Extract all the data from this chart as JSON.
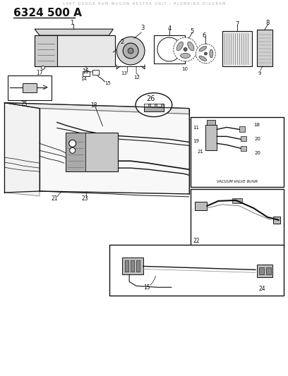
{
  "background_color": "#ffffff",
  "title_text": "6324 500 A",
  "title_fontsize": 11,
  "fig_width": 4.08,
  "fig_height": 5.33,
  "dpi": 100,
  "line_color": "#111111",
  "label_fontsize": 6.5,
  "watermark_text": "1 9 8 7   D O D G E   R A M   W A G O N   H E A T E R   U N I T   -   P L U M B I N G   D I A G R A M",
  "watermark_fontsize": 3.5,
  "watermark_color": "#aaaaaa",
  "vacuum_label": "VACUUM VALVE W/AIR"
}
